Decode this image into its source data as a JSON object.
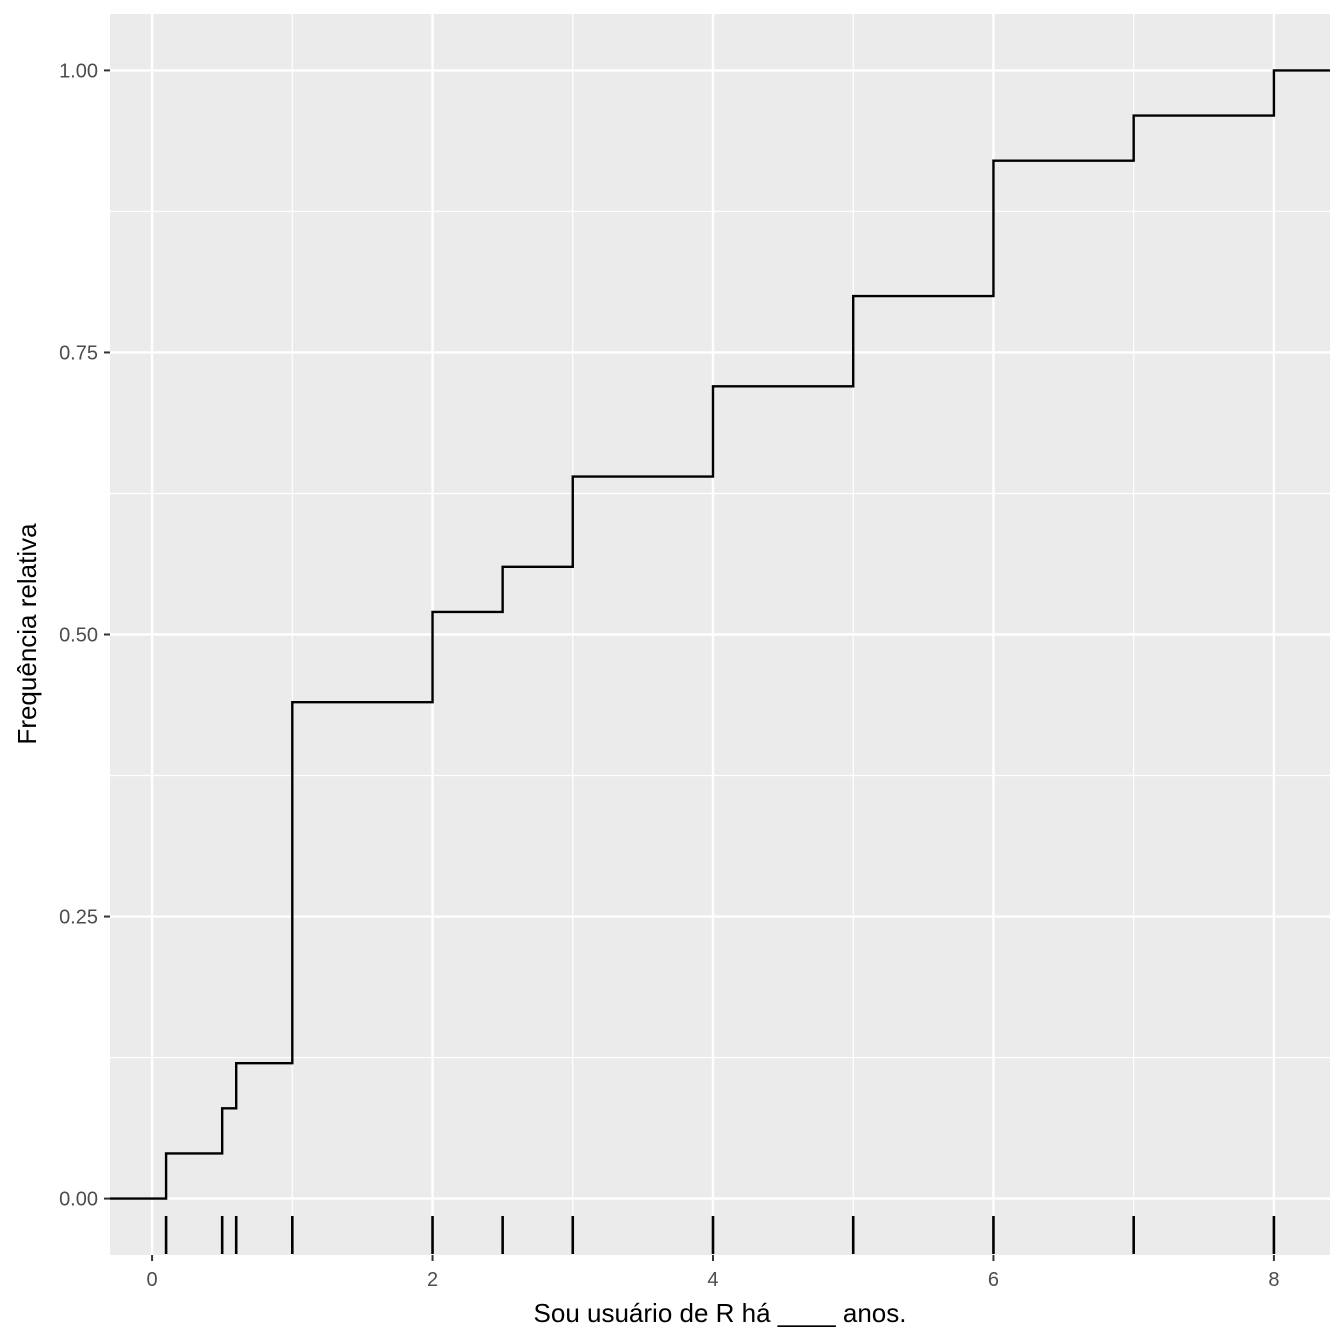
{
  "chart_data": {
    "type": "line",
    "subtype": "ecdf-step",
    "xlabel": "Sou usuário de R há ____ anos.",
    "ylabel": "Frequência relativa",
    "xlim": [
      -0.3,
      8.4
    ],
    "ylim": [
      -0.05,
      1.05
    ],
    "x_ticks": [
      0,
      2,
      4,
      6,
      8
    ],
    "x_tick_labels": [
      "0",
      "2",
      "4",
      "6",
      "8"
    ],
    "y_ticks": [
      0,
      0.25,
      0.5,
      0.75,
      1
    ],
    "y_tick_labels": [
      "0.00",
      "0.25",
      "0.50",
      "0.75",
      "1.00"
    ],
    "grid": true,
    "step_points": [
      {
        "x": 0.1,
        "y": 0.04
      },
      {
        "x": 0.5,
        "y": 0.08
      },
      {
        "x": 0.6,
        "y": 0.12
      },
      {
        "x": 1,
        "y": 0.44
      },
      {
        "x": 2,
        "y": 0.52
      },
      {
        "x": 2.5,
        "y": 0.56
      },
      {
        "x": 3,
        "y": 0.64
      },
      {
        "x": 4,
        "y": 0.72
      },
      {
        "x": 5,
        "y": 0.8
      },
      {
        "x": 6,
        "y": 0.92
      },
      {
        "x": 7,
        "y": 0.96
      },
      {
        "x": 8,
        "y": 1.0
      }
    ],
    "rug_x": [
      0.1,
      0.5,
      0.6,
      1,
      2,
      2.5,
      3,
      4,
      5,
      6,
      7,
      8
    ]
  },
  "colors": {
    "panel_background": "#ebebeb",
    "grid_major": "#ffffff",
    "line": "#000000"
  }
}
